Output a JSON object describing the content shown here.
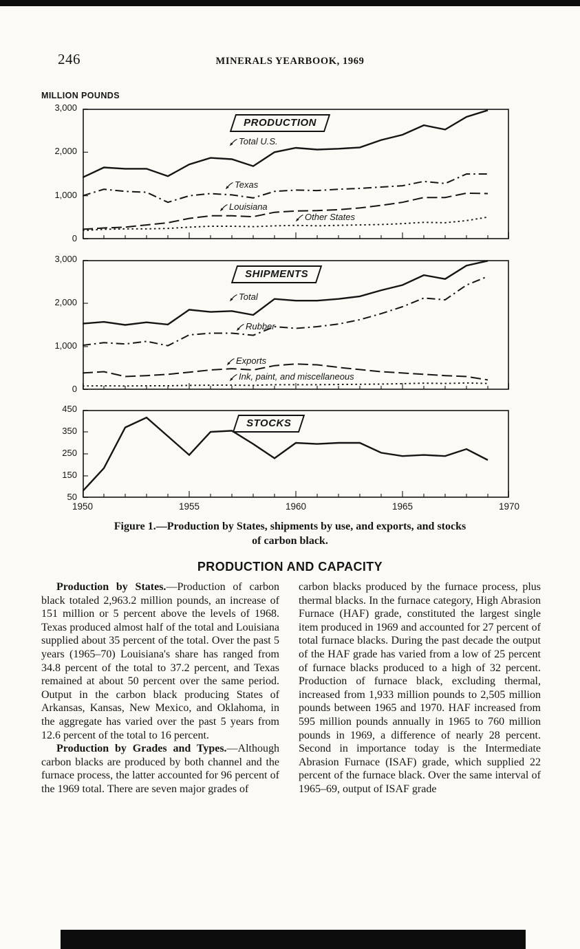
{
  "page": {
    "number": "246",
    "header": "MINERALS YEARBOOK, 1969"
  },
  "figure": {
    "axis_unit": "MILLION POUNDS",
    "caption_line1": "Figure 1.—Production by States, shipments by use, and exports, and stocks",
    "caption_line2": "of carbon black."
  },
  "chart_data": [
    {
      "type": "line",
      "title": "PRODUCTION",
      "ylabel": "MILLION POUNDS",
      "xlim": [
        1950,
        1970
      ],
      "ylim": [
        0,
        3000
      ],
      "yticks": [
        0,
        1000,
        2000,
        3000
      ],
      "ytick_labels": [
        "0",
        "1,000",
        "2,000",
        "3,000"
      ],
      "x": [
        1950,
        1951,
        1952,
        1953,
        1954,
        1955,
        1956,
        1957,
        1958,
        1959,
        1960,
        1961,
        1962,
        1963,
        1964,
        1965,
        1966,
        1967,
        1968,
        1969
      ],
      "series": [
        {
          "name": "Total U.S.",
          "style": "solid",
          "values": [
            1420,
            1650,
            1620,
            1620,
            1450,
            1720,
            1870,
            1840,
            1680,
            2000,
            2100,
            2060,
            2080,
            2110,
            2280,
            2400,
            2620,
            2520,
            2810,
            2963
          ]
        },
        {
          "name": "Texas",
          "style": "dashdot",
          "values": [
            1000,
            1150,
            1100,
            1080,
            850,
            1000,
            1050,
            1020,
            950,
            1100,
            1130,
            1120,
            1150,
            1170,
            1200,
            1230,
            1330,
            1280,
            1500,
            1500
          ]
        },
        {
          "name": "Louisiana",
          "style": "dash",
          "values": [
            230,
            260,
            280,
            330,
            380,
            480,
            540,
            540,
            520,
            620,
            650,
            660,
            680,
            720,
            780,
            850,
            960,
            960,
            1060,
            1050
          ]
        },
        {
          "name": "Other States",
          "style": "dot",
          "values": [
            200,
            230,
            240,
            240,
            250,
            280,
            300,
            300,
            290,
            310,
            320,
            310,
            320,
            330,
            340,
            360,
            390,
            380,
            430,
            510
          ]
        }
      ]
    },
    {
      "type": "line",
      "title": "SHIPMENTS",
      "ylabel": "MILLION POUNDS",
      "xlim": [
        1950,
        1970
      ],
      "ylim": [
        0,
        3000
      ],
      "yticks": [
        0,
        1000,
        2000,
        3000
      ],
      "ytick_labels": [
        "0",
        "1,000",
        "2,000",
        "3,000"
      ],
      "x": [
        1950,
        1951,
        1952,
        1953,
        1954,
        1955,
        1956,
        1957,
        1958,
        1959,
        1960,
        1961,
        1962,
        1963,
        1964,
        1965,
        1966,
        1967,
        1968,
        1969
      ],
      "series": [
        {
          "name": "Total",
          "style": "solid",
          "values": [
            1530,
            1570,
            1500,
            1560,
            1510,
            1850,
            1800,
            1820,
            1730,
            2100,
            2060,
            2060,
            2100,
            2160,
            2300,
            2420,
            2650,
            2560,
            2870,
            2980
          ]
        },
        {
          "name": "Rubber",
          "style": "dashdot",
          "values": [
            1030,
            1090,
            1060,
            1120,
            1020,
            1270,
            1310,
            1310,
            1260,
            1460,
            1420,
            1460,
            1520,
            1620,
            1760,
            1920,
            2120,
            2080,
            2420,
            2620
          ]
        },
        {
          "name": "Exports",
          "style": "dash",
          "values": [
            390,
            420,
            310,
            330,
            360,
            410,
            460,
            490,
            460,
            560,
            600,
            580,
            520,
            470,
            420,
            390,
            360,
            330,
            310,
            230
          ]
        },
        {
          "name": "Ink, paint, and miscellaneous",
          "style": "dot",
          "values": [
            90,
            95,
            90,
            95,
            95,
            105,
            110,
            110,
            105,
            120,
            120,
            120,
            125,
            130,
            135,
            145,
            155,
            150,
            160,
            150
          ]
        }
      ]
    },
    {
      "type": "line",
      "title": "STOCKS",
      "ylabel": "MILLION POUNDS",
      "xlim": [
        1950,
        1970
      ],
      "ylim": [
        50,
        450
      ],
      "yticks": [
        50,
        150,
        250,
        350,
        450
      ],
      "ytick_labels": [
        "50",
        "150",
        "250",
        "350",
        "450"
      ],
      "xtick_labels": [
        "1950",
        "1955",
        "1960",
        "1965",
        "1970"
      ],
      "x": [
        1950,
        1951,
        1952,
        1953,
        1954,
        1955,
        1956,
        1957,
        1958,
        1959,
        1960,
        1961,
        1962,
        1963,
        1964,
        1965,
        1966,
        1967,
        1968,
        1969
      ],
      "series": [
        {
          "name": "Stocks",
          "style": "solid",
          "values": [
            80,
            185,
            370,
            415,
            330,
            245,
            350,
            355,
            295,
            230,
            300,
            295,
            300,
            300,
            255,
            240,
            245,
            240,
            272,
            222
          ]
        }
      ]
    }
  ],
  "section": {
    "heading": "PRODUCTION AND CAPACITY",
    "left_column": [
      {
        "lead": "Production by States.",
        "text": "—Production of carbon black totaled 2,963.2 million pounds, an increase of 151 million or 5 percent above the levels of 1968. Texas produced almost half of the total and Louisiana supplied about 35 percent of the total. Over the past 5 years (1965–70) Louisiana's share has ranged from 34.8 percent of the total to 37.2 percent, and Texas remained at about 50 percent over the same period. Output in the carbon black producing States of Arkansas, Kansas, New Mexico, and Oklahoma, in the aggregate has varied over the past 5 years from 12.6 percent of the total to 16 percent."
      },
      {
        "lead": "Production by Grades and Types.",
        "text": "—Although carbon blacks are produced by both channel and the furnace process, the latter accounted for 96 percent of the 1969 total. There are seven major grades of"
      }
    ],
    "right_column": [
      {
        "text": "carbon blacks produced by the furnace process, plus thermal blacks. In the furnace category, High Abrasion Furnace (HAF) grade, constituted the largest single item produced in 1969 and accounted for 27 percent of total furnace blacks. During the past decade the output of the HAF grade has varied from a low of 25 percent of furnace blacks produced to a high of 32 percent. Production of furnace black, excluding thermal, increased from 1,933 million pounds to 2,505 million pounds between 1965 and 1970. HAF increased from 595 million pounds annually in 1965 to 760 million pounds in 1969, a difference of nearly 28 percent. Second in importance today is the Intermediate Abrasion Furnace (ISAF) grade, which supplied 22 percent of the furnace black. Over the same interval of 1965–69, output of ISAF grade"
      }
    ]
  }
}
